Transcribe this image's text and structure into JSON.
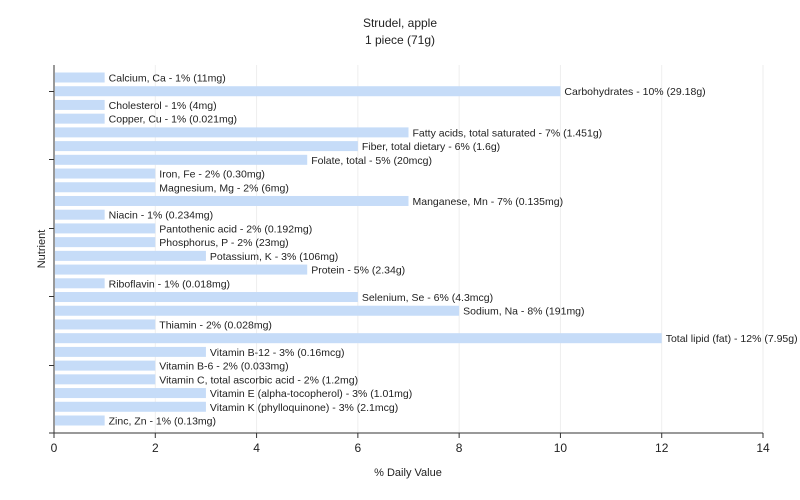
{
  "chart_data": {
    "type": "bar",
    "orientation": "horizontal",
    "title": "Strudel, apple",
    "subtitle": "1 piece (71g)",
    "xlabel": "% Daily Value",
    "ylabel": "Nutrient",
    "xlim": [
      0,
      14
    ],
    "xticks": [
      0,
      2,
      4,
      6,
      8,
      10,
      12,
      14
    ],
    "grid": "vertical",
    "colors": {
      "bar": "#c6dcf8",
      "grid": "#eeeeee",
      "axis": "#333333"
    },
    "categories": [
      "Calcium, Ca",
      "Carbohydrates",
      "Cholesterol",
      "Copper, Cu",
      "Fatty acids, total saturated",
      "Fiber, total dietary",
      "Folate, total",
      "Iron, Fe",
      "Magnesium, Mg",
      "Manganese, Mn",
      "Niacin",
      "Pantothenic acid",
      "Phosphorus, P",
      "Potassium, K",
      "Protein",
      "Riboflavin",
      "Selenium, Se",
      "Sodium, Na",
      "Thiamin",
      "Total lipid (fat)",
      "Vitamin B-12",
      "Vitamin B-6",
      "Vitamin C, total ascorbic acid",
      "Vitamin E (alpha-tocopherol)",
      "Vitamin K (phylloquinone)",
      "Zinc, Zn"
    ],
    "values": [
      1,
      10,
      1,
      1,
      7,
      6,
      5,
      2,
      2,
      7,
      1,
      2,
      2,
      3,
      5,
      1,
      6,
      8,
      2,
      12,
      3,
      2,
      2,
      3,
      3,
      1
    ],
    "labels": [
      "Calcium, Ca - 1% (11mg)",
      "Carbohydrates - 10% (29.18g)",
      "Cholesterol - 1% (4mg)",
      "Copper, Cu - 1% (0.021mg)",
      "Fatty acids, total saturated - 7% (1.451g)",
      "Fiber, total dietary - 6% (1.6g)",
      "Folate, total - 5% (20mcg)",
      "Iron, Fe - 2% (0.30mg)",
      "Magnesium, Mg - 2% (6mg)",
      "Manganese, Mn - 7% (0.135mg)",
      "Niacin - 1% (0.234mg)",
      "Pantothenic acid - 2% (0.192mg)",
      "Phosphorus, P - 2% (23mg)",
      "Potassium, K - 3% (106mg)",
      "Protein - 5% (2.34g)",
      "Riboflavin - 1% (0.018mg)",
      "Selenium, Se - 6% (4.3mcg)",
      "Sodium, Na - 8% (191mg)",
      "Thiamin - 2% (0.028mg)",
      "Total lipid (fat) - 12% (7.95g)",
      "Vitamin B-12 - 3% (0.16mcg)",
      "Vitamin B-6 - 2% (0.033mg)",
      "Vitamin C, total ascorbic acid - 2% (1.2mg)",
      "Vitamin E (alpha-tocopherol) - 3% (1.01mg)",
      "Vitamin K (phylloquinone) - 3% (2.1mcg)",
      "Zinc, Zn - 1% (0.13mg)"
    ]
  }
}
